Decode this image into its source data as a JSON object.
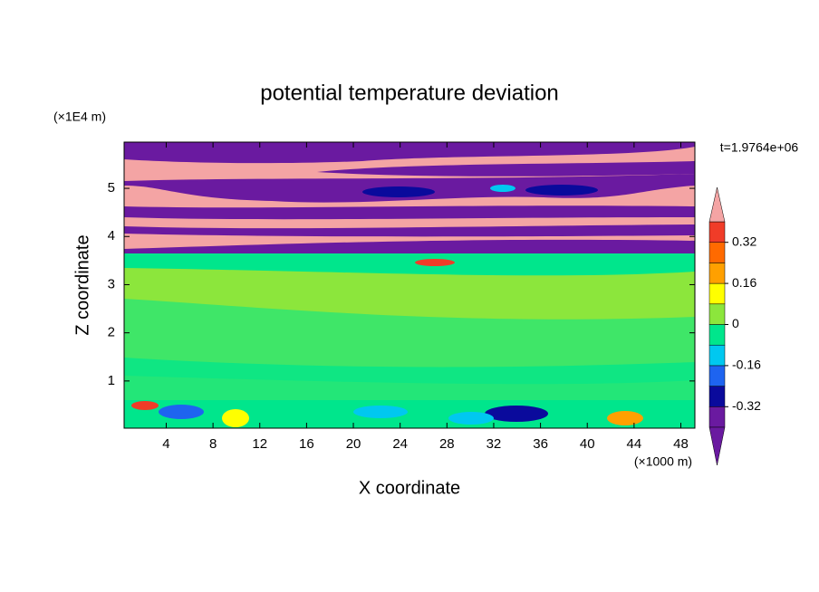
{
  "chart_data": {
    "type": "contour",
    "title": "potential temperature deviation",
    "x_label": "X coordinate",
    "y_label": "Z coordinate",
    "x_unit": "(×1000 m)",
    "y_unit": "(×1E4 m)",
    "annotation": "t=1.9764e+06",
    "xlim": [
      0.4,
      49.2
    ],
    "xticks": [
      4,
      8,
      12,
      16,
      20,
      24,
      28,
      32,
      36,
      40,
      44,
      48
    ],
    "ylim": [
      0.02,
      5.96
    ],
    "yticks": [
      1,
      2,
      3,
      4,
      5
    ],
    "colorbar": {
      "levels": [
        -0.4,
        -0.32,
        -0.24,
        -0.16,
        -0.08,
        0,
        0.08,
        0.16,
        0.24,
        0.32,
        0.4
      ],
      "colors": [
        "#6a1aa0",
        "#0a0a9c",
        "#1e64f0",
        "#00c8f0",
        "#00e68c",
        "#8ce63c",
        "#ffff00",
        "#ffa000",
        "#ff6a00",
        "#f03c28"
      ],
      "under_color": "#6a1aa0",
      "over_color": "#f4a4a4",
      "ticks": [
        -0.32,
        -0.16,
        0,
        0.16,
        0.32
      ]
    }
  }
}
